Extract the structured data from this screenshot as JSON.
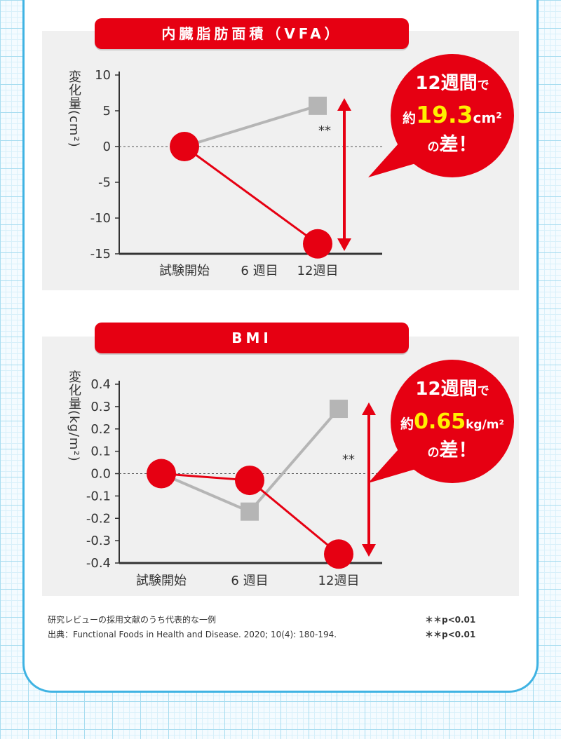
{
  "chart_data": [
    {
      "type": "line",
      "title": "内臓脂肪面積（VFA）",
      "ylabel": "変化量(cm²)",
      "categories": [
        "試験開始",
        "6 週目",
        "12週目"
      ],
      "ylim": [
        -15,
        10
      ],
      "yticks": [
        "10",
        "5",
        "0",
        "-5",
        "-10",
        "-15"
      ],
      "series": [
        {
          "values": [
            0,
            null,
            -13.6
          ],
          "color": "#e60012",
          "marker": "circle"
        },
        {
          "values": [
            0,
            null,
            5.7
          ],
          "color": "#b5b5b5",
          "marker": "square"
        }
      ],
      "significance": "**",
      "callout": {
        "line1": "12週間",
        "suffix1": "で",
        "prefix2": "約",
        "value": "19.3",
        "unit": "cm²",
        "line3_a": "の",
        "line3_b": "差！"
      }
    },
    {
      "type": "line",
      "title": "BMI",
      "ylabel": "変化量(kg/m²)",
      "categories": [
        "試験開始",
        "6 週目",
        "12週目"
      ],
      "ylim": [
        -0.4,
        0.4
      ],
      "yticks": [
        "0.4",
        "0.3",
        "0.2",
        "0.1",
        "0.0",
        "-0.1",
        "-0.2",
        "-0.3",
        "-0.4"
      ],
      "series": [
        {
          "values": [
            0,
            -0.03,
            -0.36
          ],
          "color": "#e60012",
          "marker": "circle"
        },
        {
          "values": [
            0,
            -0.17,
            0.29
          ],
          "color": "#b5b5b5",
          "marker": "square"
        }
      ],
      "significance": "**",
      "callout": {
        "line1": "12週間",
        "suffix1": "で",
        "prefix2": "約",
        "value": "0.65",
        "unit": "kg/m²",
        "line3_a": "の",
        "line3_b": "差！"
      }
    }
  ],
  "footnote": {
    "line1": "研究レビューの採用文献のうち代表的な一例",
    "line2": "出典：Functional Foods in Health and Disease. 2020; 10(4): 180-194.",
    "p1": "＊＊p<0.01",
    "p2": "＊＊p<0.01"
  },
  "colors": {
    "red": "#e60012",
    "gray": "#b5b5b5",
    "yellow": "#fff000",
    "blue": "#3fb3e3"
  }
}
